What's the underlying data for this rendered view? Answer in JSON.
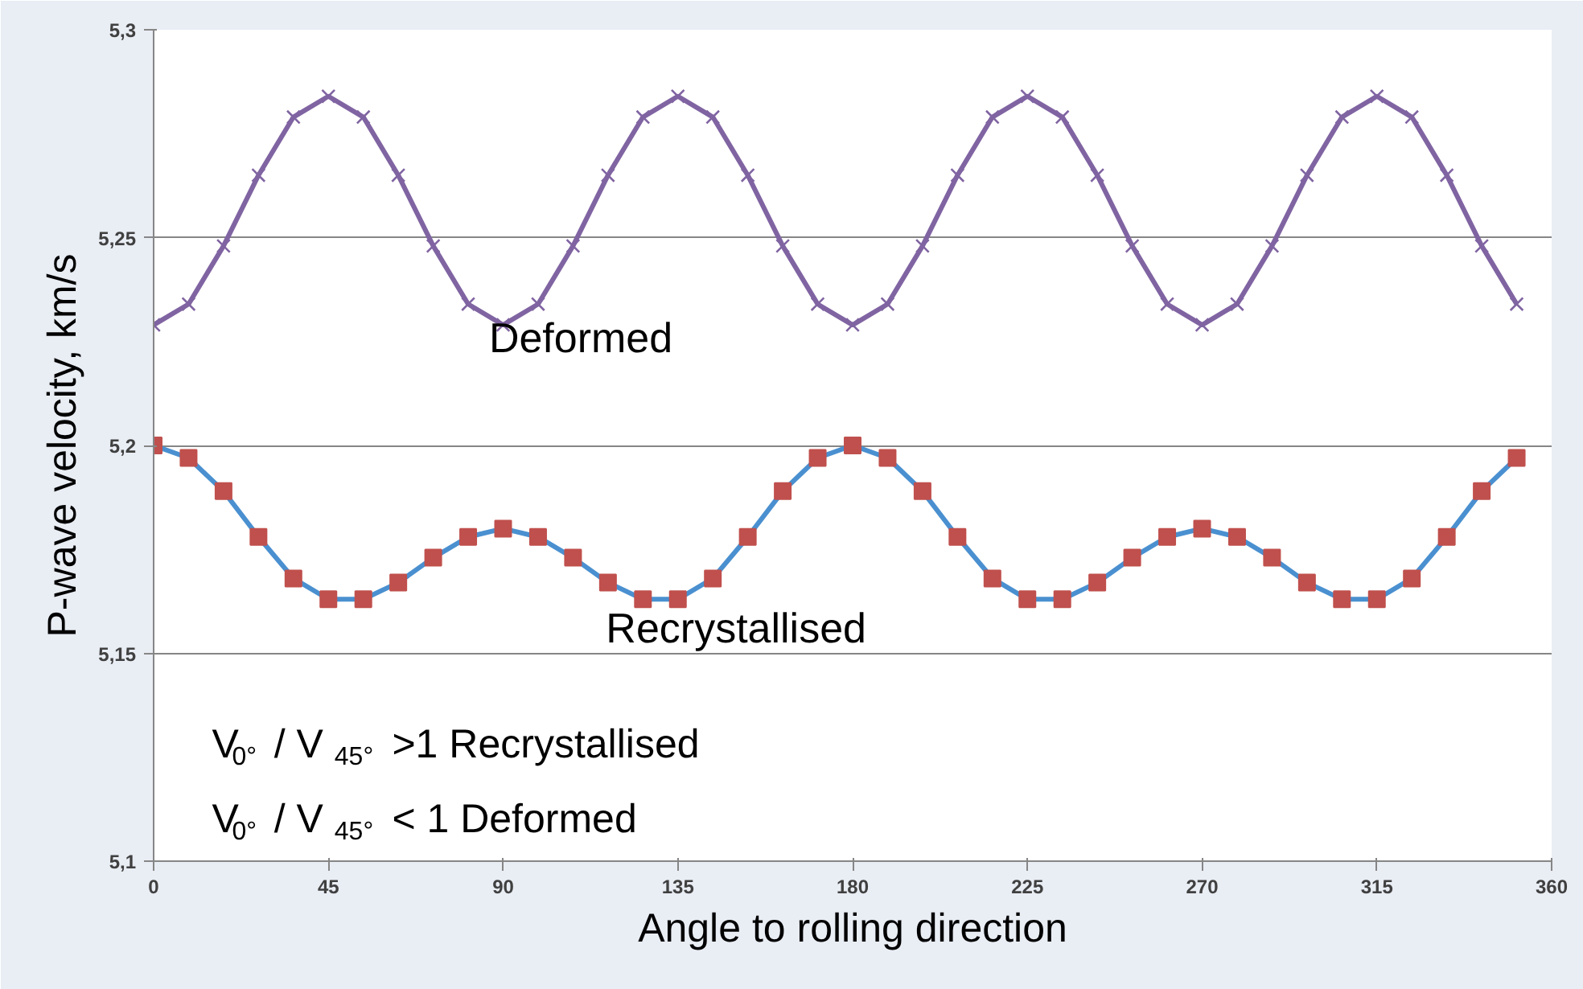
{
  "chart_data": {
    "type": "line",
    "xlabel": "Angle to rolling direction",
    "ylabel": "P-wave velocity, km/s",
    "x": [
      0,
      9,
      18,
      27,
      36,
      45,
      54,
      63,
      72,
      81,
      90,
      99,
      108,
      117,
      126,
      135,
      144,
      153,
      162,
      171,
      180,
      189,
      198,
      207,
      216,
      225,
      234,
      243,
      252,
      261,
      270,
      279,
      288,
      297,
      306,
      315,
      324,
      333,
      342,
      351
    ],
    "series": [
      {
        "name": "Deformed",
        "color": "#8064a2",
        "marker": "cross",
        "values": [
          5.229,
          5.234,
          5.248,
          5.265,
          5.279,
          5.284,
          5.279,
          5.265,
          5.248,
          5.234,
          5.229,
          5.234,
          5.248,
          5.265,
          5.279,
          5.284,
          5.279,
          5.265,
          5.248,
          5.234,
          5.229,
          5.234,
          5.248,
          5.265,
          5.279,
          5.284,
          5.279,
          5.265,
          5.248,
          5.234,
          5.229,
          5.234,
          5.248,
          5.265,
          5.279,
          5.284,
          5.279,
          5.265,
          5.248,
          5.234
        ]
      },
      {
        "name": "Recrystallised",
        "color": "#4a90d0",
        "marker": "square",
        "colors": [
          "#c0504d",
          "#c0504d",
          "#c0504d",
          "#c0504d",
          "#c0504d",
          "#c0504d",
          "#c0504d",
          "#c0504d",
          "#c0504d",
          "#c0504d",
          "#c0504d",
          "#c0504d",
          "#c0504d",
          "#c0504d",
          "#c0504d",
          "#c0504d",
          "#c0504d",
          "#c0504d",
          "#c0504d",
          "#c0504d",
          "#c0504d",
          "#c0504d",
          "#c0504d",
          "#c0504d",
          "#c0504d",
          "#c0504d",
          "#c0504d",
          "#c0504d",
          "#c0504d",
          "#c0504d",
          "#c0504d",
          "#c0504d",
          "#c0504d",
          "#c0504d",
          "#c0504d",
          "#c0504d",
          "#c0504d",
          "#c0504d",
          "#c0504d",
          "#c0504d"
        ],
        "values": [
          5.2,
          5.197,
          5.189,
          5.178,
          5.168,
          5.163,
          5.163,
          5.167,
          5.173,
          5.178,
          5.18,
          5.178,
          5.173,
          5.167,
          5.163,
          5.163,
          5.168,
          5.178,
          5.189,
          5.197,
          5.2,
          5.197,
          5.189,
          5.178,
          5.168,
          5.163,
          5.163,
          5.167,
          5.173,
          5.178,
          5.18,
          5.178,
          5.173,
          5.167,
          5.163,
          5.163,
          5.168,
          5.178,
          5.189,
          5.197
        ]
      }
    ],
    "xlim": [
      0,
      360
    ],
    "xticks": [
      0,
      45,
      90,
      135,
      180,
      225,
      270,
      315,
      360
    ],
    "ylim": [
      5.1,
      5.3
    ],
    "yticks": [
      {
        "value": 5.1,
        "label": "5,1"
      },
      {
        "value": 5.15,
        "label": "5,15"
      },
      {
        "value": 5.2,
        "label": "5,2"
      },
      {
        "value": 5.25,
        "label": "5,25"
      },
      {
        "value": 5.3,
        "label": "5,3"
      }
    ],
    "grid": "y",
    "line_style": "solid",
    "annotations": [
      "V$_{0°}$ / V$_{45°}$ >1  Recrystallised",
      "V$_{0°}$ / V$_{45°}$ < 1 Deformed"
    ]
  }
}
